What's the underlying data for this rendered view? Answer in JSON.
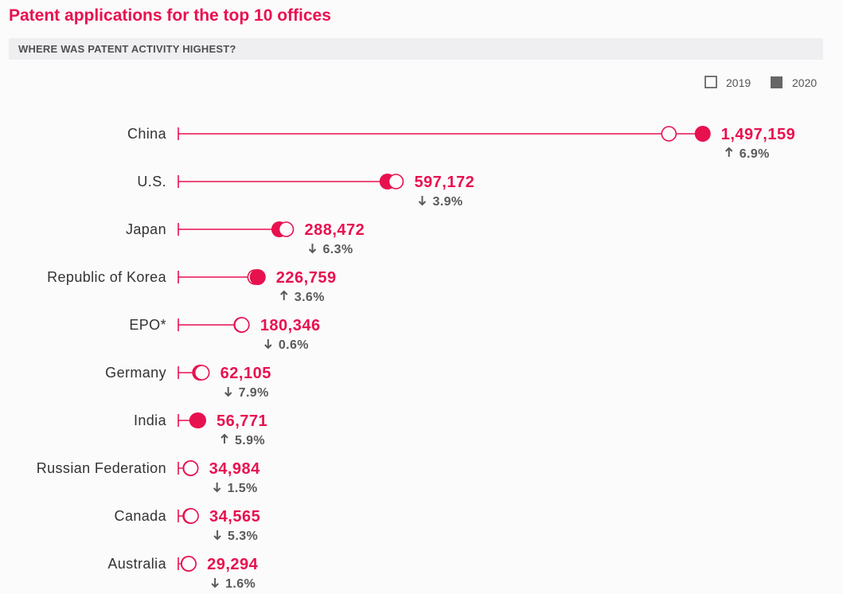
{
  "title": "Patent applications for the top 10 offices",
  "subtitle": "WHERE WAS PATENT ACTIVITY HIGHEST?",
  "colors": {
    "accent": "#e8114f",
    "legend_2020": "#666666",
    "change_text": "#5a5a5a",
    "label_text": "#333333"
  },
  "chart_data": {
    "type": "dot-plot",
    "title": "Patent applications for the top 10 offices",
    "subtitle": "WHERE WAS PATENT ACTIVITY HIGHEST?",
    "legend": {
      "placement": "top-right",
      "entries": [
        {
          "label": "2019",
          "marker": "open"
        },
        {
          "label": "2020",
          "marker": "filled"
        }
      ]
    },
    "grid": false,
    "xlim": [
      0,
      1500000
    ],
    "series": [
      {
        "name": "2019",
        "values": [
          1400661,
          621453,
          307969,
          218975,
          181406,
          67434,
          53627,
          35511,
          36488,
          29758
        ]
      },
      {
        "name": "2020",
        "values": [
          1497159,
          597172,
          288472,
          226759,
          180346,
          62105,
          56771,
          34984,
          34565,
          29294
        ]
      }
    ],
    "rows": [
      {
        "label": "China",
        "value_label": "1,497,159",
        "direction": "up",
        "change": "6.9%"
      },
      {
        "label": "U.S.",
        "value_label": "597,172",
        "direction": "down",
        "change": "3.9%"
      },
      {
        "label": "Japan",
        "value_label": "288,472",
        "direction": "down",
        "change": "6.3%"
      },
      {
        "label": "Republic of Korea",
        "value_label": "226,759",
        "direction": "up",
        "change": "3.6%"
      },
      {
        "label": "EPO*",
        "value_label": "180,346",
        "direction": "down",
        "change": "0.6%"
      },
      {
        "label": "Germany",
        "value_label": "62,105",
        "direction": "down",
        "change": "7.9%"
      },
      {
        "label": "India",
        "value_label": "56,771",
        "direction": "up",
        "change": "5.9%"
      },
      {
        "label": "Russian Federation",
        "value_label": "34,984",
        "direction": "down",
        "change": "1.5%"
      },
      {
        "label": "Canada",
        "value_label": "34,565",
        "direction": "down",
        "change": "5.3%"
      },
      {
        "label": "Australia",
        "value_label": "29,294",
        "direction": "down",
        "change": "1.6%"
      }
    ]
  }
}
